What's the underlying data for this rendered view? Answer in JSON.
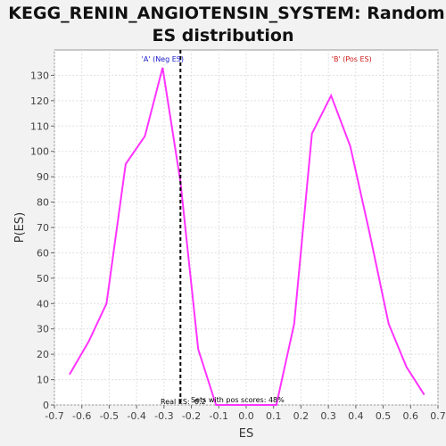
{
  "chart_data": {
    "type": "line",
    "title_lines": [
      "KEGG_RENIN_ANGIOTENSIN_SYSTEM: Random",
      "ES distribution"
    ],
    "xlabel": "ES",
    "ylabel": "P(ES)",
    "xlim": [
      -0.7,
      0.7
    ],
    "ylim": [
      0,
      140
    ],
    "xticks": [
      -0.7,
      -0.6,
      -0.5,
      -0.4,
      -0.3,
      -0.2,
      -0.1,
      0.0,
      0.1,
      0.2,
      0.3,
      0.4,
      0.5,
      0.6,
      0.7
    ],
    "xtick_labels": [
      "-0.7",
      "-0.6",
      "-0.5",
      "-0.4",
      "-0.3",
      "-0.2",
      "-0.1",
      "0.0",
      "0.1",
      "0.2",
      "0.3",
      "0.4",
      "0.5",
      "0.6",
      "0.7"
    ],
    "yticks": [
      0,
      10,
      20,
      30,
      40,
      50,
      60,
      70,
      80,
      90,
      100,
      110,
      120,
      130
    ],
    "ytick_labels": [
      "0",
      "10",
      "20",
      "30",
      "40",
      "50",
      "60",
      "70",
      "80",
      "90",
      "100",
      "110",
      "120",
      "130"
    ],
    "grid": true,
    "series": [
      {
        "color": "#ff33ff",
        "x": [
          -0.645,
          -0.575,
          -0.51,
          -0.44,
          -0.37,
          -0.305,
          -0.24,
          -0.175,
          -0.11,
          -0.05,
          0.0,
          0.05,
          0.11,
          0.175,
          0.24,
          0.31,
          0.38,
          0.45,
          0.52,
          0.585,
          0.65
        ],
        "y": [
          12,
          25,
          40,
          95,
          106,
          133,
          88,
          22,
          0,
          0,
          0,
          0,
          0,
          32,
          107,
          122,
          102,
          68,
          32,
          15,
          4
        ]
      }
    ],
    "real_es": -0.24,
    "real_es_label": "Real ES: -0.2",
    "annotations": [
      {
        "text": "'A' (Neg ES)",
        "x": -0.305,
        "color": "#1a1acc"
      },
      {
        "text": "'B' (Pos ES)",
        "x": 0.385,
        "color": "#cc1a1a"
      }
    ],
    "pos_scores_text": "Sets with pos scores: 48%"
  }
}
